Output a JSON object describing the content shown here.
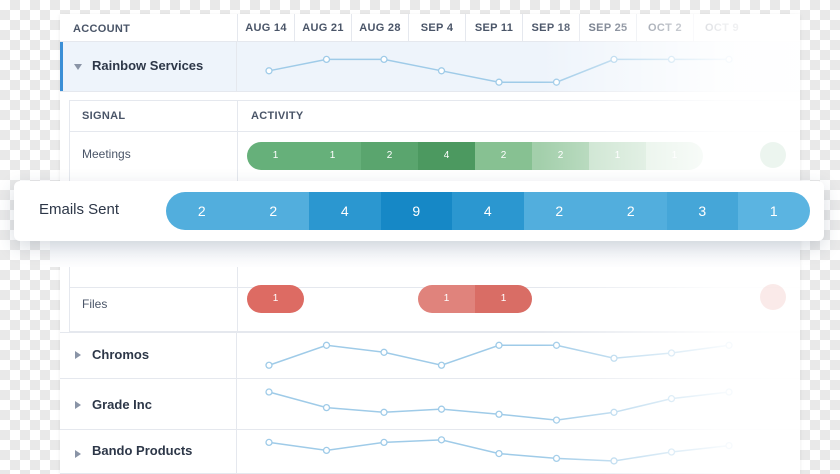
{
  "header": {
    "account_label": "ACCOUNT",
    "dates": [
      "AUG 14",
      "AUG 21",
      "AUG 28",
      "SEP 4",
      "SEP 11",
      "SEP 18",
      "SEP 25",
      "OCT 2",
      "OCT 9"
    ]
  },
  "accounts": [
    {
      "name": "Rainbow Services",
      "expanded": true,
      "sparkline": [
        0.6,
        0.3,
        0.3,
        0.6,
        0.9,
        0.9,
        0.3,
        0.3,
        0.3
      ]
    },
    {
      "name": "Chromos",
      "expanded": false,
      "sparkline": [
        0.75,
        0.18,
        0.38,
        0.75,
        0.18,
        0.18,
        0.55,
        0.4,
        0.18
      ]
    },
    {
      "name": "Grade Inc",
      "expanded": false,
      "sparkline": [
        0.18,
        0.58,
        0.7,
        0.62,
        0.75,
        0.9,
        0.7,
        0.35,
        0.18
      ]
    },
    {
      "name": "Bando Products",
      "expanded": false,
      "sparkline": [
        0.2,
        0.45,
        0.2,
        0.12,
        0.55,
        0.7,
        0.78,
        0.5,
        0.3
      ]
    }
  ],
  "signals": {
    "signal_label": "SIGNAL",
    "activity_label": "ACTIVITY",
    "meetings": {
      "label": "Meetings",
      "values": [
        "1",
        "1",
        "2",
        "4",
        "2",
        "2",
        "1",
        "1"
      ],
      "colors": [
        "#66b07a",
        "#66b07a",
        "#5aa56e",
        "#4c9960",
        "#87c192",
        "#a3cfab",
        "#c2dfc7",
        "#d8ebdb"
      ]
    },
    "emails": {
      "label": "Emails Sent",
      "values": [
        "2",
        "2",
        "4",
        "9",
        "4",
        "2",
        "2",
        "3",
        "1"
      ],
      "colors": [
        "#52aedd",
        "#52aedd",
        "#2b97d0",
        "#1688c6",
        "#2b97d0",
        "#52aedd",
        "#52aedd",
        "#45a6d8",
        "#5bb4e1"
      ]
    },
    "files": {
      "label": "Files",
      "groups": [
        {
          "values": [
            "1"
          ],
          "colors": [
            "#dd6b63"
          ]
        },
        {
          "values": [
            "1",
            "1"
          ],
          "colors": [
            "#e0837c",
            "#d96d65"
          ]
        }
      ]
    }
  },
  "colors": {
    "accent": "#3b8fd6",
    "sparkline": "#9fcbe8",
    "meetings": "#5aa56e",
    "emails": "#2b97d0",
    "files": "#dd6b63"
  }
}
